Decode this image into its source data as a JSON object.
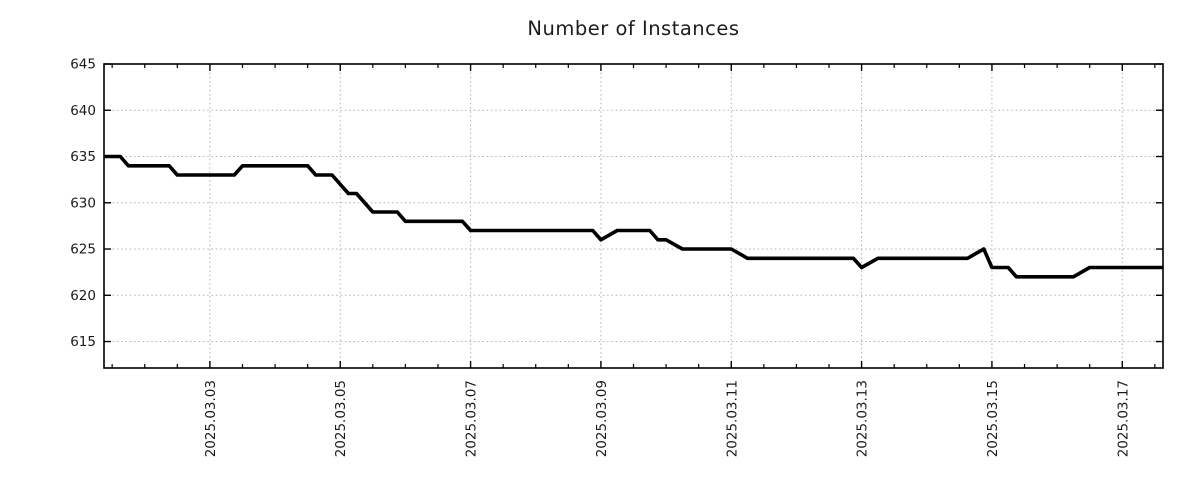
{
  "page": {
    "background": "#ffffff"
  },
  "chart_data": {
    "type": "line",
    "title": "Number of Instances",
    "legend_position": "none",
    "grid": {
      "visible": true,
      "style": "dotted",
      "color": "#b0b0b0"
    },
    "x_axis": {
      "label": "",
      "epoch": "2025.03.01 00:00",
      "unit": "days",
      "range_days": [
        0.375,
        16.625
      ],
      "tick_positions_days": [
        2,
        4,
        6,
        8,
        10,
        12,
        14,
        16
      ],
      "tick_labels": [
        "2025.03.03",
        "2025.03.05",
        "2025.03.07",
        "2025.03.09",
        "2025.03.11",
        "2025.03.13",
        "2025.03.15",
        "2025.03.17"
      ],
      "minor_tick_step_days": 0.5,
      "tick_label_rotation_deg": 90
    },
    "y_axis": {
      "label": "",
      "range": [
        612.14,
        645
      ],
      "tick_values": [
        615,
        620,
        625,
        630,
        635,
        640,
        645
      ],
      "tick_labels": [
        "615",
        "620",
        "625",
        "630",
        "635",
        "640",
        "645"
      ]
    },
    "series": [
      {
        "name": "Number of Instances",
        "color": "#000000",
        "line_width": 3.6,
        "points_day_value": [
          [
            0.375,
            635
          ],
          [
            0.625,
            635
          ],
          [
            0.75,
            634
          ],
          [
            1.375,
            634
          ],
          [
            1.5,
            633
          ],
          [
            2.375,
            633
          ],
          [
            2.5,
            634
          ],
          [
            3.5,
            634
          ],
          [
            3.625,
            633
          ],
          [
            3.875,
            633
          ],
          [
            4.0,
            632
          ],
          [
            4.125,
            631
          ],
          [
            4.25,
            631
          ],
          [
            4.5,
            629
          ],
          [
            4.875,
            629
          ],
          [
            5.0,
            628
          ],
          [
            5.875,
            628
          ],
          [
            6.0,
            627
          ],
          [
            7.875,
            627
          ],
          [
            8.0,
            626
          ],
          [
            8.25,
            627
          ],
          [
            8.75,
            627
          ],
          [
            8.875,
            626
          ],
          [
            9.0,
            626
          ],
          [
            9.25,
            625
          ],
          [
            10.0,
            625
          ],
          [
            10.25,
            624
          ],
          [
            11.875,
            624
          ],
          [
            12.0,
            623
          ],
          [
            12.25,
            624
          ],
          [
            13.625,
            624
          ],
          [
            13.875,
            625
          ],
          [
            14.0,
            623
          ],
          [
            14.25,
            623
          ],
          [
            14.375,
            622
          ],
          [
            15.25,
            622
          ],
          [
            15.5,
            623
          ],
          [
            16.625,
            623
          ]
        ]
      }
    ]
  }
}
